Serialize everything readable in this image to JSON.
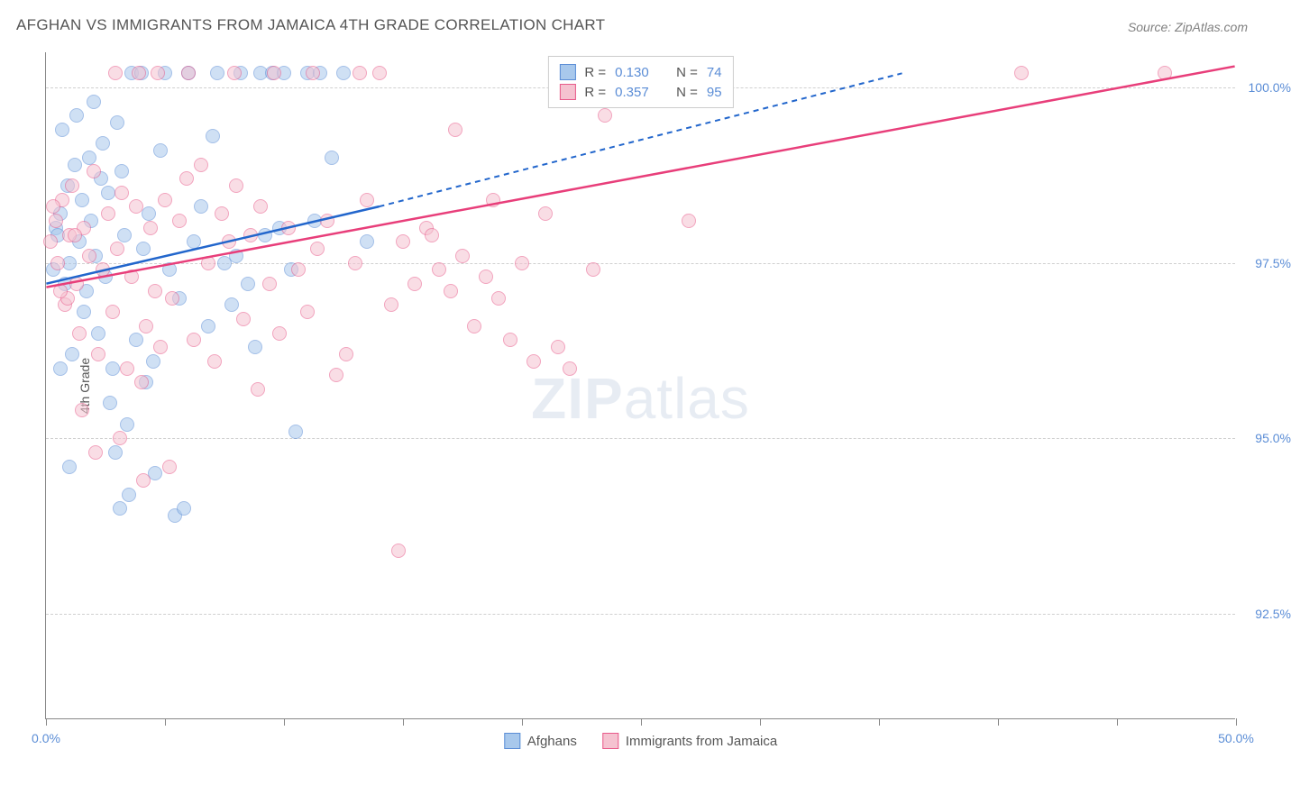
{
  "title": "AFGHAN VS IMMIGRANTS FROM JAMAICA 4TH GRADE CORRELATION CHART",
  "source": "Source: ZipAtlas.com",
  "ylabel": "4th Grade",
  "watermark_bold": "ZIP",
  "watermark_light": "atlas",
  "chart": {
    "type": "scatter",
    "xlim": [
      0,
      50
    ],
    "ylim": [
      91,
      100.5
    ],
    "xtick_positions": [
      0,
      5,
      10,
      15,
      20,
      25,
      30,
      35,
      40,
      45,
      50
    ],
    "xtick_labels": {
      "0": "0.0%",
      "50": "50.0%"
    },
    "ytick_positions": [
      92.5,
      95.0,
      97.5,
      100.0
    ],
    "ytick_labels": [
      "92.5%",
      "95.0%",
      "97.5%",
      "100.0%"
    ],
    "grid_color": "#d0d0d0",
    "background_color": "#ffffff",
    "axis_color": "#888888",
    "label_color": "#5b8dd6",
    "series": [
      {
        "name": "Afghans",
        "color_fill": "#a8c8ec",
        "color_stroke": "#5b8dd6",
        "line_color": "#2266cc",
        "r": "0.130",
        "n": "74",
        "trend": {
          "x1": 0,
          "y1": 97.2,
          "x2_solid": 14,
          "y2_solid": 98.3,
          "x2_dash": 36,
          "y2_dash": 100.2
        },
        "points": [
          [
            0.3,
            97.4
          ],
          [
            0.4,
            98.0
          ],
          [
            0.5,
            97.9
          ],
          [
            0.6,
            98.2
          ],
          [
            0.7,
            99.4
          ],
          [
            0.8,
            97.2
          ],
          [
            0.9,
            98.6
          ],
          [
            1.0,
            97.5
          ],
          [
            1.1,
            96.2
          ],
          [
            1.2,
            98.9
          ],
          [
            1.3,
            99.6
          ],
          [
            1.4,
            97.8
          ],
          [
            1.5,
            98.4
          ],
          [
            1.6,
            96.8
          ],
          [
            1.7,
            97.1
          ],
          [
            1.8,
            99.0
          ],
          [
            1.9,
            98.1
          ],
          [
            2.0,
            99.8
          ],
          [
            2.1,
            97.6
          ],
          [
            2.2,
            96.5
          ],
          [
            2.3,
            98.7
          ],
          [
            2.4,
            99.2
          ],
          [
            2.5,
            97.3
          ],
          [
            2.6,
            98.5
          ],
          [
            2.8,
            96.0
          ],
          [
            2.9,
            94.8
          ],
          [
            3.0,
            99.5
          ],
          [
            3.2,
            98.8
          ],
          [
            3.3,
            97.9
          ],
          [
            3.5,
            94.2
          ],
          [
            3.6,
            100.2
          ],
          [
            3.8,
            96.4
          ],
          [
            4.0,
            100.2
          ],
          [
            4.1,
            97.7
          ],
          [
            4.3,
            98.2
          ],
          [
            4.5,
            96.1
          ],
          [
            4.6,
            94.5
          ],
          [
            4.8,
            99.1
          ],
          [
            5.0,
            100.2
          ],
          [
            5.2,
            97.4
          ],
          [
            5.4,
            93.9
          ],
          [
            5.6,
            97.0
          ],
          [
            5.8,
            94.0
          ],
          [
            6.0,
            100.2
          ],
          [
            6.2,
            97.8
          ],
          [
            6.5,
            98.3
          ],
          [
            6.8,
            96.6
          ],
          [
            7.0,
            99.3
          ],
          [
            7.2,
            100.2
          ],
          [
            7.5,
            97.5
          ],
          [
            7.8,
            96.9
          ],
          [
            8.0,
            97.6
          ],
          [
            8.2,
            100.2
          ],
          [
            8.5,
            97.2
          ],
          [
            8.8,
            96.3
          ],
          [
            9.0,
            100.2
          ],
          [
            9.2,
            97.9
          ],
          [
            9.5,
            100.2
          ],
          [
            9.8,
            98.0
          ],
          [
            10.0,
            100.2
          ],
          [
            10.3,
            97.4
          ],
          [
            10.5,
            95.1
          ],
          [
            11.0,
            100.2
          ],
          [
            11.3,
            98.1
          ],
          [
            11.5,
            100.2
          ],
          [
            12.0,
            99.0
          ],
          [
            12.5,
            100.2
          ],
          [
            13.5,
            97.8
          ],
          [
            3.1,
            94.0
          ],
          [
            2.7,
            95.5
          ],
          [
            4.2,
            95.8
          ],
          [
            3.4,
            95.2
          ],
          [
            1.0,
            94.6
          ],
          [
            0.6,
            96.0
          ]
        ]
      },
      {
        "name": "Immigrants from Jamaica",
        "color_fill": "#f5c2d0",
        "color_stroke": "#e85a8a",
        "line_color": "#e83e7a",
        "r": "0.357",
        "n": "95",
        "trend": {
          "x1": 0,
          "y1": 97.15,
          "x2_solid": 50,
          "y2_solid": 100.3,
          "x2_dash": 50,
          "y2_dash": 100.3
        },
        "points": [
          [
            0.2,
            97.8
          ],
          [
            0.4,
            98.1
          ],
          [
            0.5,
            97.5
          ],
          [
            0.7,
            98.4
          ],
          [
            0.8,
            96.9
          ],
          [
            1.0,
            97.9
          ],
          [
            1.1,
            98.6
          ],
          [
            1.3,
            97.2
          ],
          [
            1.4,
            96.5
          ],
          [
            1.6,
            98.0
          ],
          [
            1.8,
            97.6
          ],
          [
            2.0,
            98.8
          ],
          [
            2.2,
            96.2
          ],
          [
            2.4,
            97.4
          ],
          [
            2.6,
            98.2
          ],
          [
            2.8,
            96.8
          ],
          [
            3.0,
            97.7
          ],
          [
            3.2,
            98.5
          ],
          [
            3.4,
            96.0
          ],
          [
            3.6,
            97.3
          ],
          [
            3.8,
            98.3
          ],
          [
            4.0,
            95.8
          ],
          [
            4.2,
            96.6
          ],
          [
            4.4,
            98.0
          ],
          [
            4.6,
            97.1
          ],
          [
            4.8,
            96.3
          ],
          [
            5.0,
            98.4
          ],
          [
            5.3,
            97.0
          ],
          [
            5.6,
            98.1
          ],
          [
            5.9,
            98.7
          ],
          [
            6.2,
            96.4
          ],
          [
            6.5,
            98.9
          ],
          [
            6.8,
            97.5
          ],
          [
            7.1,
            96.1
          ],
          [
            7.4,
            98.2
          ],
          [
            7.7,
            97.8
          ],
          [
            8.0,
            98.6
          ],
          [
            8.3,
            96.7
          ],
          [
            8.6,
            97.9
          ],
          [
            9.0,
            98.3
          ],
          [
            9.4,
            97.2
          ],
          [
            9.8,
            96.5
          ],
          [
            10.2,
            98.0
          ],
          [
            10.6,
            97.4
          ],
          [
            11.0,
            96.8
          ],
          [
            11.4,
            97.7
          ],
          [
            11.8,
            98.1
          ],
          [
            12.2,
            95.9
          ],
          [
            12.6,
            96.2
          ],
          [
            13.0,
            97.5
          ],
          [
            13.5,
            98.4
          ],
          [
            14.0,
            100.2
          ],
          [
            14.5,
            96.9
          ],
          [
            15.0,
            97.8
          ],
          [
            15.5,
            97.2
          ],
          [
            16.0,
            98.0
          ],
          [
            16.5,
            97.4
          ],
          [
            17.0,
            97.1
          ],
          [
            17.2,
            99.4
          ],
          [
            17.5,
            97.6
          ],
          [
            18.0,
            96.6
          ],
          [
            18.5,
            97.3
          ],
          [
            19.0,
            97.0
          ],
          [
            19.5,
            96.4
          ],
          [
            20.0,
            97.5
          ],
          [
            20.5,
            96.1
          ],
          [
            21.0,
            98.2
          ],
          [
            22.0,
            96.0
          ],
          [
            23.0,
            97.4
          ],
          [
            1.5,
            95.4
          ],
          [
            2.1,
            94.8
          ],
          [
            3.1,
            95.0
          ],
          [
            4.1,
            94.4
          ],
          [
            5.2,
            94.6
          ],
          [
            14.8,
            93.4
          ],
          [
            16.2,
            97.9
          ],
          [
            13.2,
            100.2
          ],
          [
            11.2,
            100.2
          ],
          [
            9.6,
            100.2
          ],
          [
            7.9,
            100.2
          ],
          [
            6.0,
            100.2
          ],
          [
            4.7,
            100.2
          ],
          [
            3.9,
            100.2
          ],
          [
            2.9,
            100.2
          ],
          [
            0.9,
            97.0
          ],
          [
            1.2,
            97.9
          ],
          [
            0.3,
            98.3
          ],
          [
            0.6,
            97.1
          ],
          [
            23.5,
            99.6
          ],
          [
            27.0,
            98.1
          ],
          [
            41.0,
            100.2
          ],
          [
            47.0,
            100.2
          ],
          [
            18.8,
            98.4
          ],
          [
            21.5,
            96.3
          ],
          [
            8.9,
            95.7
          ]
        ]
      }
    ]
  },
  "legend_bottom": [
    {
      "label": "Afghans"
    },
    {
      "label": "Immigrants from Jamaica"
    }
  ]
}
